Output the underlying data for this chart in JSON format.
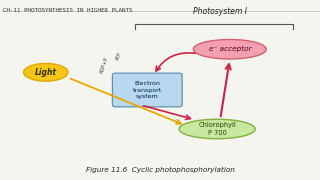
{
  "title_bar": "CH-11 PHOTOSYNTHESIS IN HIGHER PLANTS",
  "figure_caption": "Figure 11.6  Cyclic photophosphorylation",
  "photosystem_label": "Photosystem I",
  "light_label": "Light",
  "e_acceptor_label": "e⁻ acceptor",
  "ets_label": "Electron\ntransport\nsystem",
  "chlorophyll_label": "Chlorophyll\nP 700",
  "atp_label": "ATP",
  "adp_label": "ADP+P",
  "bg_color": "#f5f5f0",
  "light_ellipse_color": "#f5c518",
  "light_ellipse_edge": "#e0a800",
  "e_acceptor_color": "#f4a0b0",
  "e_acceptor_edge": "#d06070",
  "ets_color": "#b8d8f0",
  "ets_edge": "#6090b0",
  "chlorophyll_color": "#c8e8a0",
  "chlorophyll_edge": "#80b040",
  "arrow_red": "#cc2244",
  "arrow_yellow": "#e8a800",
  "text_color": "#222222",
  "bracket_color": "#555555"
}
